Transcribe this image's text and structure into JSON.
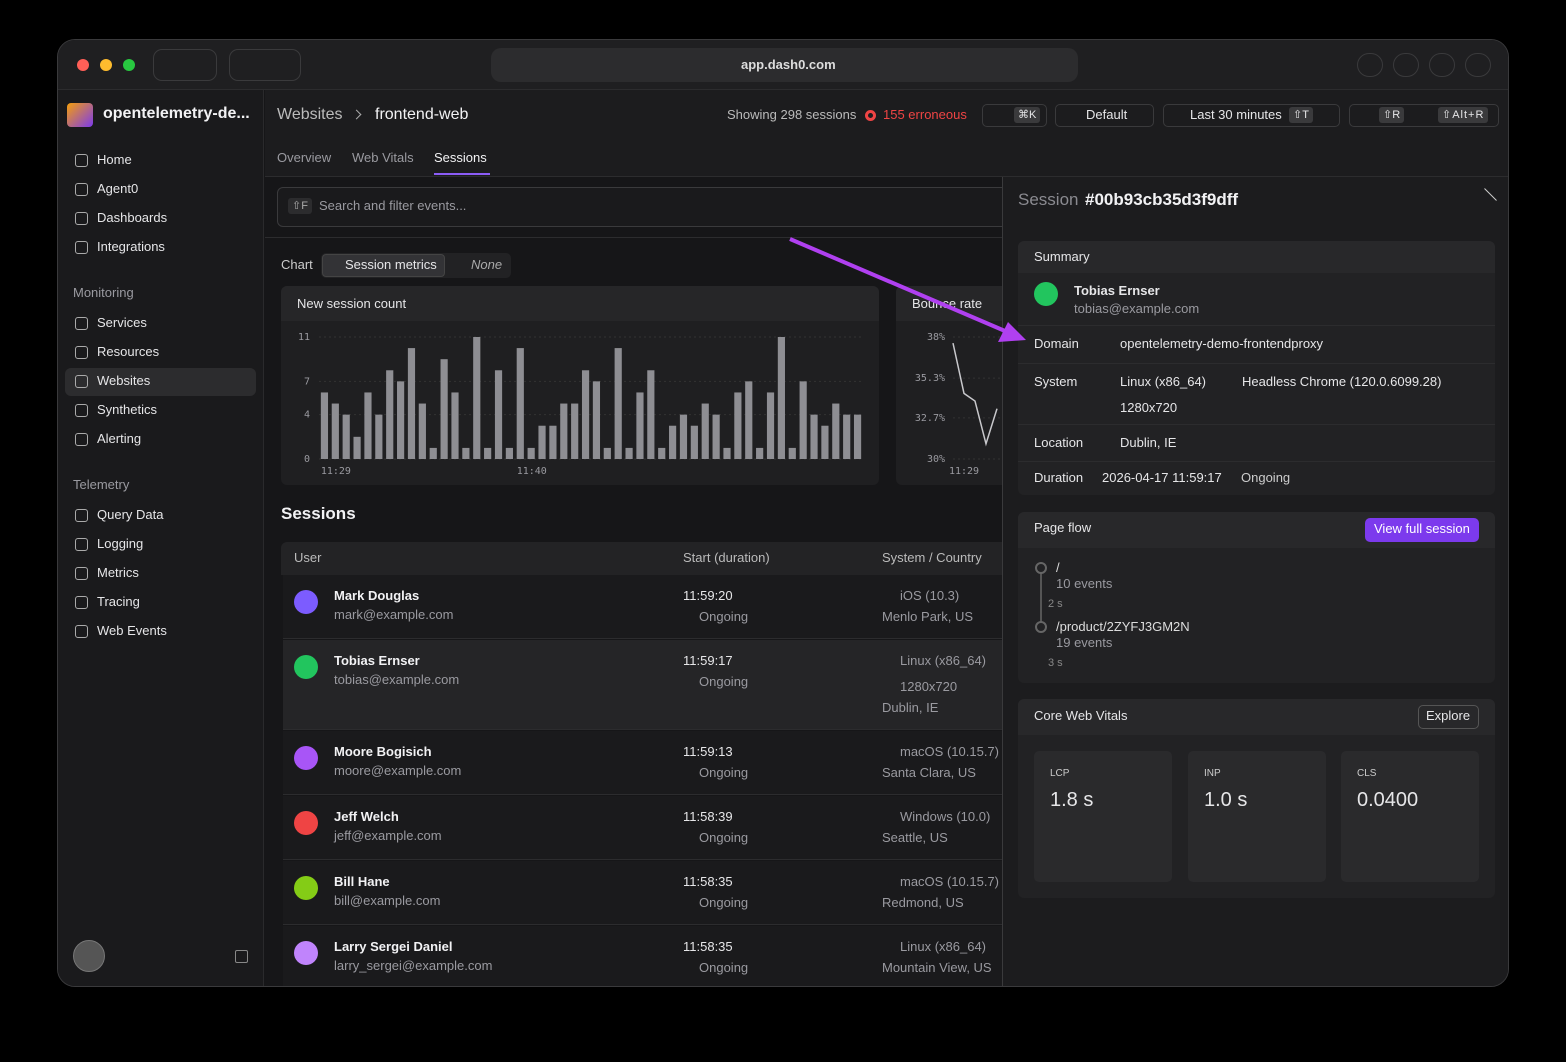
{
  "browser": {
    "url": "app.dash0.com"
  },
  "sidebar": {
    "org": "opentelemetry-de...",
    "nav": [
      "Home",
      "Agent0",
      "Dashboards",
      "Integrations"
    ],
    "sections": [
      {
        "title": "Monitoring",
        "items": [
          "Services",
          "Resources",
          "Websites",
          "Synthetics",
          "Alerting"
        ]
      },
      {
        "title": "Telemetry",
        "items": [
          "Query Data",
          "Logging",
          "Metrics",
          "Tracing",
          "Web Events"
        ]
      }
    ]
  },
  "header": {
    "breadcrumb": [
      "Websites",
      "frontend-web"
    ],
    "sessions_count": "Showing 298 sessions",
    "errors": "155 erroneous",
    "command_shortcut": "⌘K",
    "dataset": "Default",
    "time_range": "Last 30 minutes",
    "time_shortcut": "⇧T",
    "refresh_shortcut": "⇧R",
    "auto_refresh_shortcut": "⇧Alt+R"
  },
  "tabs": [
    "Overview",
    "Web Vitals",
    "Sessions"
  ],
  "search": {
    "shortcut": "⇧F",
    "placeholder": "Search and filter events..."
  },
  "chart_toggle": {
    "label": "Chart",
    "options": [
      "Session metrics",
      "None"
    ]
  },
  "chart_data": [
    {
      "type": "bar",
      "title": "New session count",
      "color": "#8e8e93",
      "ylim": [
        0,
        11
      ],
      "yticks": [
        0,
        4,
        7,
        11
      ],
      "grid": true,
      "categories": [
        "11:29",
        null,
        null,
        null,
        null,
        null,
        null,
        null,
        null,
        null,
        null,
        null,
        null,
        null,
        null,
        null,
        null,
        null,
        "11:40",
        null,
        null,
        null,
        null,
        null,
        null,
        null,
        null,
        null,
        null,
        null,
        null,
        null,
        null,
        null,
        null,
        null,
        null,
        null,
        null,
        null,
        null,
        null,
        null,
        null,
        null,
        null,
        null,
        null,
        null,
        null
      ],
      "values": [
        6,
        5,
        4,
        2,
        6,
        4,
        8,
        7,
        10,
        5,
        1,
        9,
        6,
        1,
        11,
        1,
        8,
        1,
        10,
        1,
        3,
        3,
        5,
        5,
        8,
        7,
        1,
        10,
        1,
        6,
        8,
        1,
        3,
        4,
        3,
        5,
        4,
        1,
        6,
        7,
        1,
        6,
        11,
        1,
        7,
        4,
        3,
        5,
        4,
        4
      ]
    },
    {
      "type": "line",
      "title": "Bounce rate",
      "color": "#c8c8cc",
      "ylim": [
        30,
        38
      ],
      "yticks": [
        {
          "value": 30,
          "label": "30%"
        },
        {
          "value": 32.7,
          "label": "32.7%"
        },
        {
          "value": 35.3,
          "label": "35.3%"
        },
        {
          "value": 38,
          "label": "38%"
        }
      ],
      "grid": true,
      "categories": [
        null,
        "11:29",
        null,
        null,
        null
      ],
      "values": [
        37.6,
        34.3,
        33.8,
        31.0,
        33.3
      ]
    }
  ],
  "sessions": {
    "title": "Sessions",
    "columns": [
      "User",
      "Start (duration)",
      "System / Country"
    ],
    "rows": [
      {
        "name": "Mark Douglas",
        "email": "mark@example.com",
        "start": "11:59:20",
        "duration": "Ongoing",
        "system": [
          "iOS (10.3)"
        ],
        "location": "Menlo Park, US"
      },
      {
        "name": "Tobias Ernser",
        "email": "tobias@example.com",
        "start": "11:59:17",
        "duration": "Ongoing",
        "system": [
          "Linux (x86_64)",
          "1280x720"
        ],
        "location": "Dublin, IE"
      },
      {
        "name": "Moore Bogisich",
        "email": "moore@example.com",
        "start": "11:59:13",
        "duration": "Ongoing",
        "system": [
          "macOS (10.15.7)"
        ],
        "location": "Santa Clara, US"
      },
      {
        "name": "Jeff Welch",
        "email": "jeff@example.com",
        "start": "11:58:39",
        "duration": "Ongoing",
        "system": [
          "Windows (10.0)"
        ],
        "location": "Seattle, US"
      },
      {
        "name": "Bill Hane",
        "email": "bill@example.com",
        "start": "11:58:35",
        "duration": "Ongoing",
        "system": [
          "macOS (10.15.7)"
        ],
        "location": "Redmond, US"
      },
      {
        "name": "Larry Sergei Daniel",
        "email": "larry_sergei@example.com",
        "start": "11:58:35",
        "duration": "Ongoing",
        "system": [
          "Linux (x86_64)"
        ],
        "location": "Mountain View, US"
      }
    ]
  },
  "detail": {
    "label": "Session",
    "id": "#00b93cb35d3f9dff",
    "summary": {
      "title": "Summary",
      "user": "Tobias Ernser",
      "email": "tobias@example.com",
      "fields": [
        {
          "label": "Domain",
          "values": [
            "opentelemetry-demo-frontendproxy"
          ]
        },
        {
          "label": "System",
          "values": [
            "Linux (x86_64)",
            "Headless Chrome (120.0.6099.28)",
            "1280x720"
          ]
        },
        {
          "label": "Location",
          "values": [
            "Dublin, IE"
          ]
        },
        {
          "label": "Duration",
          "values": [
            "2026-04-17 11:59:17",
            "Ongoing"
          ]
        }
      ]
    },
    "page_flow": {
      "title": "Page flow",
      "button": "View full session",
      "steps": [
        {
          "path": "/",
          "events": "10 events",
          "duration": "2 s"
        },
        {
          "path": "/product/2ZYFJ3GM2N",
          "events": "19 events",
          "duration": "3 s"
        }
      ]
    },
    "web_vitals": {
      "title": "Core Web Vitals",
      "button": "Explore",
      "metrics": [
        {
          "name": "LCP",
          "value": "1.8 s"
        },
        {
          "name": "INP",
          "value": "1.0 s"
        },
        {
          "name": "CLS",
          "value": "0.0400"
        }
      ]
    }
  }
}
